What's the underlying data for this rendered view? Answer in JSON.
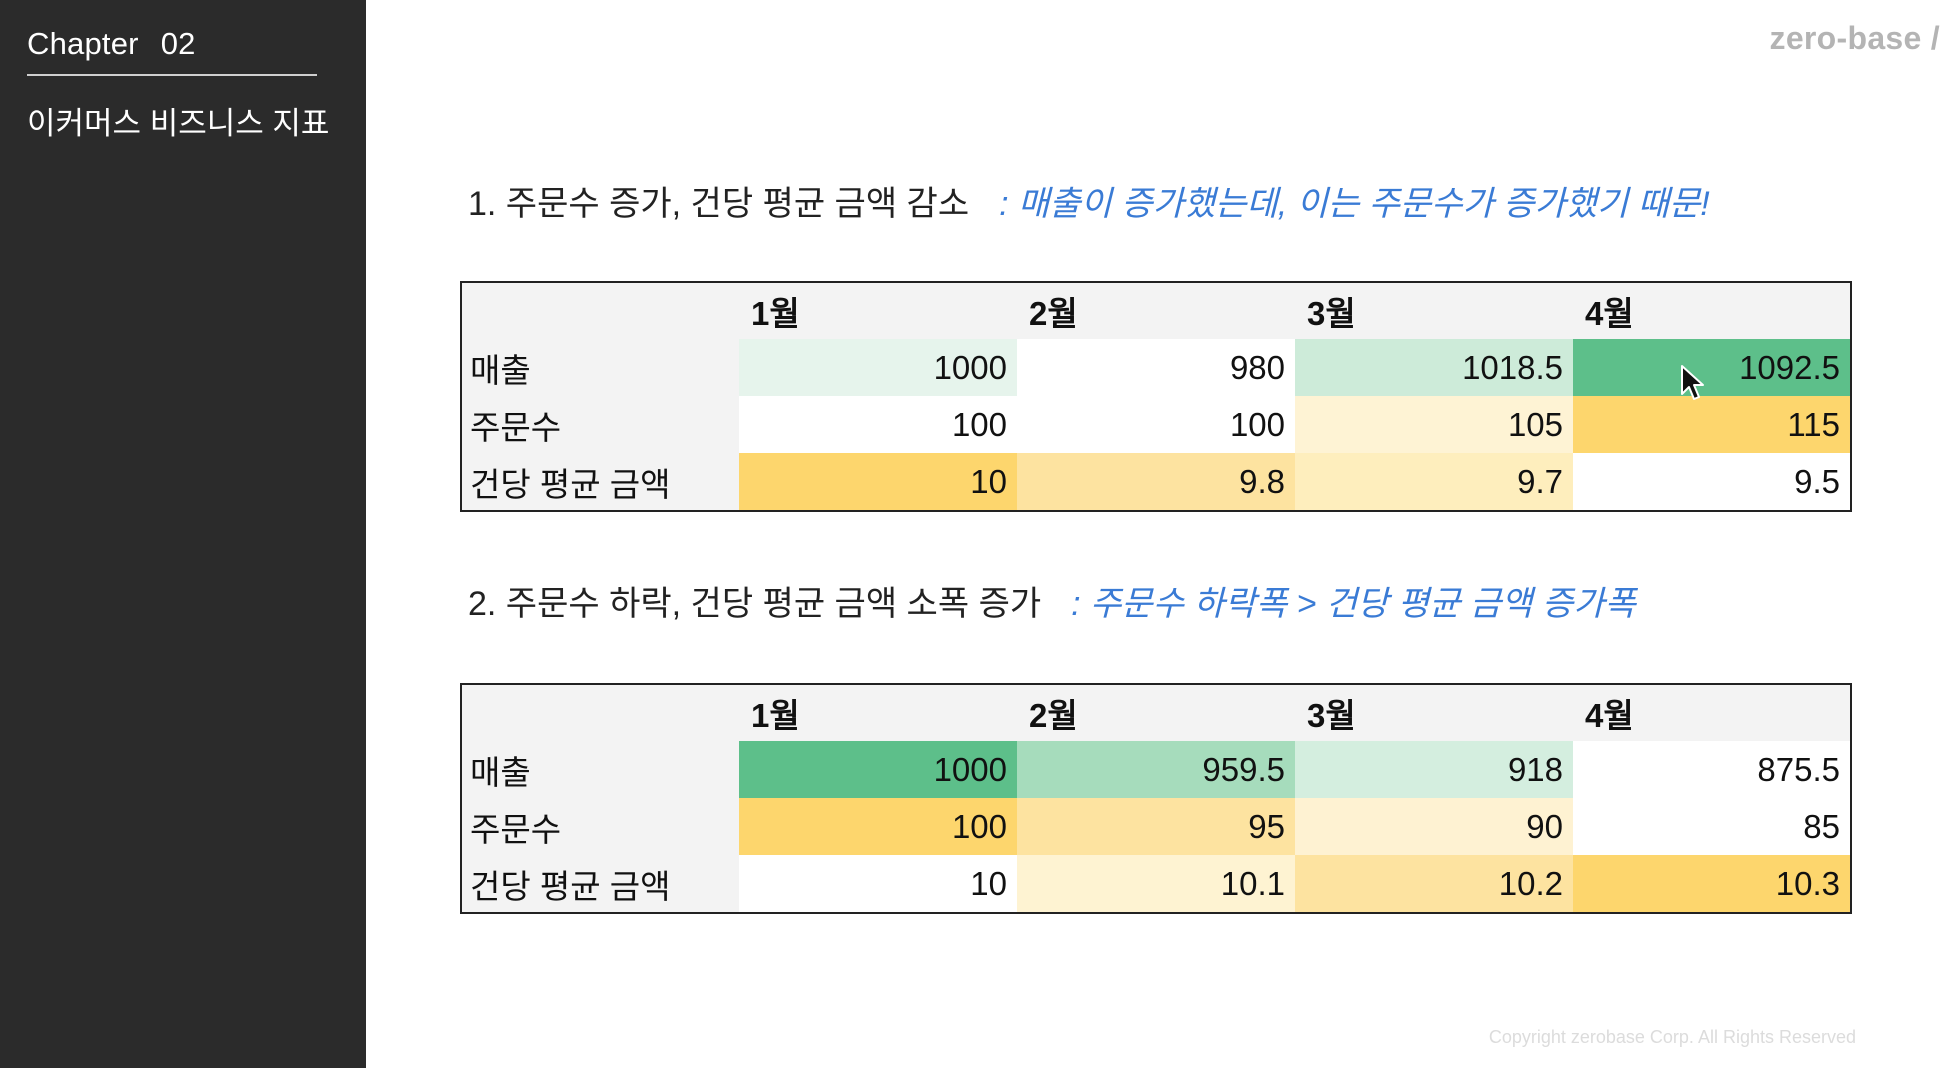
{
  "sidebar": {
    "chapter_label": "Chapter",
    "chapter_number": "02",
    "subtitle": "이커머스 비즈니스 지표"
  },
  "header": {
    "logo": "zero-base /"
  },
  "sections": [
    {
      "title": "1. 주문수 증가, 건당 평균 금액 감소",
      "note": ": 매출이 증가했는데, 이는 주문수가 증가했기 때문!",
      "months": [
        "1월",
        "2월",
        "3월",
        "4월"
      ],
      "rows": [
        {
          "label": "매출",
          "values": [
            "1000",
            "980",
            "1018.5",
            "1092.5"
          ],
          "colors": [
            "#e6f4ec",
            "#ffffff",
            "#cdebd9",
            "#5dbf8a"
          ]
        },
        {
          "label": "주문수",
          "values": [
            "100",
            "100",
            "105",
            "115"
          ],
          "colors": [
            "#ffffff",
            "#ffffff",
            "#fef3d4",
            "#fdd66d"
          ]
        },
        {
          "label": "건당 평균 금액",
          "values": [
            "10",
            "9.8",
            "9.7",
            "9.5"
          ],
          "colors": [
            "#fdd66d",
            "#fde3a0",
            "#feeebd",
            "#ffffff"
          ]
        }
      ]
    },
    {
      "title": "2. 주문수 하락, 건당 평균 금액 소폭 증가",
      "note": ": 주문수 하락폭 > 건당 평균 금액 증가폭",
      "months": [
        "1월",
        "2월",
        "3월",
        "4월"
      ],
      "rows": [
        {
          "label": "매출",
          "values": [
            "1000",
            "959.5",
            "918",
            "875.5"
          ],
          "colors": [
            "#5dbf8a",
            "#a6dcbc",
            "#d4eedf",
            "#ffffff"
          ]
        },
        {
          "label": "주문수",
          "values": [
            "100",
            "95",
            "90",
            "85"
          ],
          "colors": [
            "#fdd66d",
            "#fde3a0",
            "#fef2d2",
            "#ffffff"
          ]
        },
        {
          "label": "건당 평균 금액",
          "values": [
            "10",
            "10.1",
            "10.2",
            "10.3"
          ],
          "colors": [
            "#ffffff",
            "#fef3d2",
            "#fde3a0",
            "#fdd66d"
          ]
        }
      ]
    }
  ],
  "footer": {
    "copyright": "Copyright zerobase Corp. All Rights Reserved"
  }
}
